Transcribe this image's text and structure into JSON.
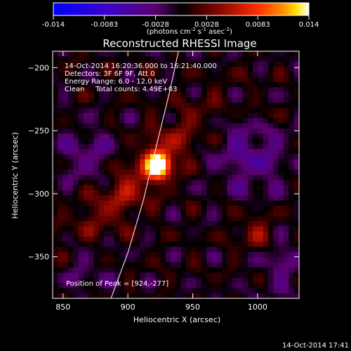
{
  "colorbar": {
    "min": -0.014,
    "max": 0.014,
    "ticks": [
      "-0.014",
      "-0.0083",
      "-0.0028",
      "0.0028",
      "0.0083",
      "0.014"
    ],
    "unit_label": "(photons cm-2 s-1 asec-2)",
    "palette": [
      "#0000ff",
      "#3a00d0",
      "#5a006e",
      "#000000",
      "#5a0000",
      "#b01000",
      "#ff3000",
      "#ff9000",
      "#ffe000",
      "#ffffff"
    ]
  },
  "chart_data": {
    "type": "heatmap",
    "title": "Reconstructed RHESSI Image",
    "xlabel": "Heliocentric X (arcsec)",
    "ylabel": "Heliocentric Y (arcsec)",
    "xlim": [
      842,
      1032
    ],
    "ylim": [
      -383,
      -187
    ],
    "xticks": [
      850,
      900,
      950,
      1000
    ],
    "yticks": [
      -200,
      -250,
      -300,
      -350
    ],
    "peak": {
      "x": 924,
      "y": -277,
      "value": 0.014
    },
    "limb_arc": [
      [
        887,
        -383
      ],
      [
        900,
        -347
      ],
      [
        912,
        -305
      ],
      [
        922,
        -262
      ],
      [
        932,
        -220
      ],
      [
        939,
        -187
      ]
    ],
    "overlay_lines": [
      "14-Oct-2014 16:20:36.000 to 16:21:40.000",
      "Detectors: 3F 6F 9F, Att 0",
      "Energy Range: 6.0 - 12.0 keV",
      "Clean     Total counts: 4.49E+03"
    ],
    "peak_label": "Position of Peak = [924,-277]"
  },
  "footer": {
    "timestamp": "14-Oct-2014 17:41"
  }
}
